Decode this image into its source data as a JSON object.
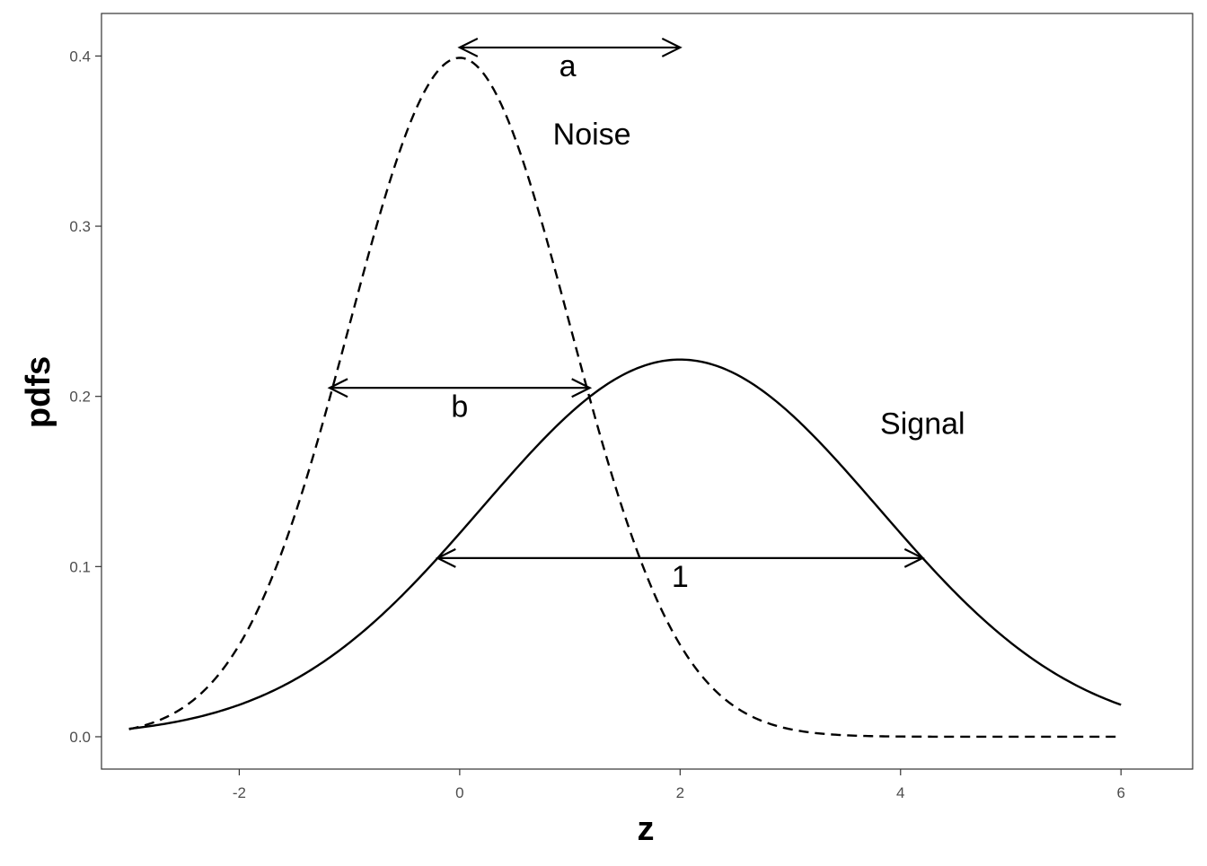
{
  "chart_data": {
    "type": "line",
    "title": "",
    "xlabel": "z",
    "ylabel": "pdfs",
    "xlim": [
      -3.25,
      6.65
    ],
    "ylim": [
      -0.019,
      0.425
    ],
    "x_ticks": [
      -2,
      0,
      2,
      4,
      6
    ],
    "x_tick_labels": [
      "-2",
      "0",
      "2",
      "4",
      "6"
    ],
    "y_ticks": [
      0.0,
      0.1,
      0.2,
      0.3,
      0.4
    ],
    "y_tick_labels": [
      "0.0",
      "0.1",
      "0.2",
      "0.3",
      "0.4"
    ],
    "grid": false,
    "legend": "none",
    "series": [
      {
        "name": "Noise",
        "line_style": "dashed",
        "distribution": {
          "kind": "normal",
          "mean": 0,
          "sd": 1
        },
        "x_range": [
          -3,
          6
        ]
      },
      {
        "name": "Signal",
        "line_style": "solid",
        "distribution": {
          "kind": "normal",
          "mean": 2,
          "sd": 1.8
        },
        "x_range": [
          -3,
          6
        ]
      }
    ],
    "annotations": [
      {
        "label": "a",
        "kind": "double-arrow",
        "x_start": 0,
        "x_end": 2,
        "y": 0.405,
        "label_x": 0.98,
        "label_y": 0.388
      },
      {
        "label": "b",
        "kind": "double-arrow",
        "x_start": -1.18,
        "x_end": 1.18,
        "y": 0.205,
        "label_x": 0.0,
        "label_y": 0.188
      },
      {
        "label": "1",
        "kind": "double-arrow",
        "x_start": -0.2,
        "x_end": 4.2,
        "y": 0.105,
        "label_x": 2.0,
        "label_y": 0.088
      },
      {
        "label": "Noise",
        "kind": "text",
        "x": 1.2,
        "y": 0.348
      },
      {
        "label": "Signal",
        "kind": "text",
        "x": 4.2,
        "y": 0.178
      }
    ],
    "colors": {
      "line": "#000000",
      "frame": "#333333",
      "tick_label": "#4d4d4d",
      "background": "#ffffff"
    }
  }
}
